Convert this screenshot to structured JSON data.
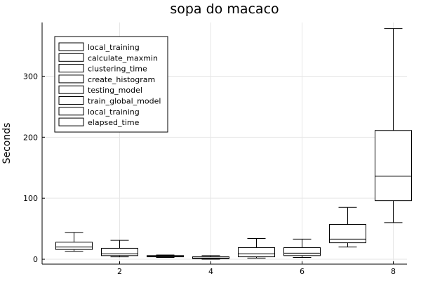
{
  "chart_data": {
    "type": "box",
    "title": "sopa do macaco",
    "xlabel": "",
    "ylabel": "Seconds",
    "xlim": [
      0.3,
      8.3
    ],
    "ylim": [
      -8,
      388
    ],
    "xticks": [
      2,
      4,
      6,
      8
    ],
    "yticks": [
      0,
      100,
      200,
      300
    ],
    "grid": true,
    "legend_position": "top-left",
    "series": [
      {
        "name": "local_training",
        "x": 1,
        "min": 13,
        "q1": 16,
        "median": 20,
        "q3": 28,
        "max": 44
      },
      {
        "name": "calculate_maxmin",
        "x": 2,
        "min": 4,
        "q1": 6,
        "median": 9,
        "q3": 18,
        "max": 31
      },
      {
        "name": "clustering_time",
        "x": 3,
        "min": 3,
        "q1": 4,
        "median": 5,
        "q3": 6,
        "max": 7
      },
      {
        "name": "create_histogram",
        "x": 4,
        "min": 0,
        "q1": 1,
        "median": 2,
        "q3": 4,
        "max": 6
      },
      {
        "name": "testing_model",
        "x": 5,
        "min": 2,
        "q1": 4,
        "median": 9,
        "q3": 19,
        "max": 34
      },
      {
        "name": "train_global_model",
        "x": 6,
        "min": 3,
        "q1": 6,
        "median": 10,
        "q3": 19,
        "max": 33
      },
      {
        "name": "local_training",
        "x": 7,
        "min": 20,
        "q1": 27,
        "median": 33,
        "q3": 57,
        "max": 85
      },
      {
        "name": "elapsed_time",
        "x": 8,
        "min": 60,
        "q1": 96,
        "median": 136,
        "q3": 211,
        "max": 378
      }
    ]
  }
}
